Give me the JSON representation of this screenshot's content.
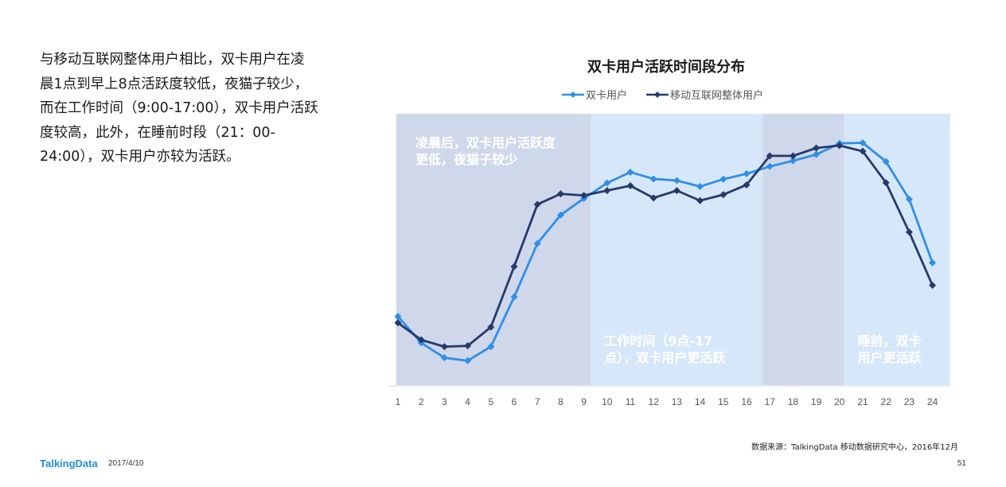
{
  "intro": {
    "lines": [
      "与移动互联网整体用户相比，双卡用户在凌",
      "晨1点到早上8点活跃度较低，夜猫子较少，",
      "而在工作时间（9:00-17:00），双卡用户活跃",
      "度较高，此外，在睡前时段（21：00-",
      "24:00），双卡用户亦较为活跃。"
    ]
  },
  "chart_data": {
    "type": "line",
    "title": "双卡用户活跃时间段分布",
    "x": [
      1,
      2,
      3,
      4,
      5,
      6,
      7,
      8,
      9,
      10,
      11,
      12,
      13,
      14,
      15,
      16,
      17,
      18,
      19,
      20,
      21,
      22,
      23,
      24
    ],
    "ylim": [
      0,
      100
    ],
    "grid": false,
    "legend": "top-center",
    "series": [
      {
        "name": "双卡用户",
        "color": "#2f8fe6",
        "values": [
          25.3,
          15.6,
          10.1,
          9.0,
          14.2,
          32.5,
          52.2,
          62.7,
          68.8,
          74.5,
          78.5,
          76.0,
          75.4,
          73.2,
          75.9,
          77.9,
          80.6,
          82.7,
          85.0,
          89.1,
          89.3,
          82.4,
          68.5,
          45.1
        ]
      },
      {
        "name": "移动互联网整体用户",
        "color": "#263a6a",
        "values": [
          23.0,
          16.7,
          14.2,
          14.5,
          21.4,
          43.7,
          66.6,
          70.5,
          69.9,
          71.7,
          73.5,
          69.0,
          71.7,
          68.0,
          70.2,
          73.8,
          84.5,
          84.5,
          87.4,
          88.3,
          86.2,
          74.6,
          56.4,
          36.8
        ]
      }
    ],
    "bands": [
      {
        "from": 1,
        "to": 9.3,
        "color": "#cfd7eb",
        "label_lines": [
          "凌晨后，双卡用户活跃度",
          "更低，夜猫子较少"
        ],
        "label_pos": "top"
      },
      {
        "from": 9.3,
        "to": 16.7,
        "color": "#d6e7fa",
        "label_lines": [
          "工作时间（9点-17",
          "点），双卡用户更活跃"
        ],
        "label_pos": "bottom"
      },
      {
        "from": 16.7,
        "to": 20.2,
        "color": "#cfd7eb",
        "label_lines": [],
        "label_pos": "none"
      },
      {
        "from": 20.2,
        "to": 24.7,
        "color": "#d6e7fa",
        "label_lines": [
          "睡前，双卡",
          "用户更活跃"
        ],
        "label_pos": "bottom"
      }
    ]
  },
  "footer": {
    "logo": "TalkingData",
    "date": "2017/4/10",
    "source": "数据来源：TalkingData 移动数据研究中心，2016年12月",
    "page": "51"
  }
}
